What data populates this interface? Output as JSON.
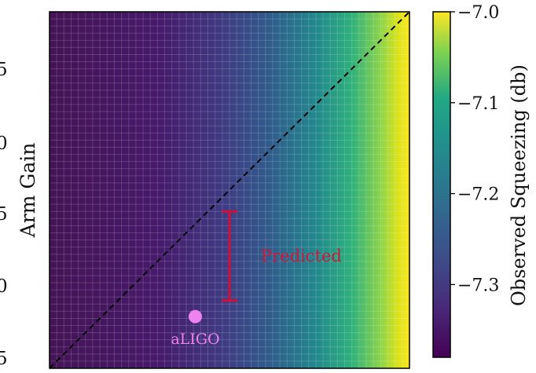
{
  "chart_data": {
    "type": "heatmap",
    "title": "",
    "ylabel": "Arm Gain",
    "xlabel": "",
    "visible_y_tick_labels": [
      "5",
      "0",
      "5",
      "0",
      "5"
    ],
    "grid": true,
    "colormap": "viridis",
    "colorbar": {
      "label": "Observed Squeezing (db)",
      "ticks": [
        -7.0,
        -7.1,
        -7.2,
        -7.3
      ],
      "tick_labels": [
        "−7.0",
        "−7.1",
        "−7.2",
        "−7.3"
      ],
      "range": [
        -7.38,
        -7.0
      ]
    },
    "axes_fraction_range": {
      "x": [
        0,
        1
      ],
      "y": [
        0,
        1
      ]
    },
    "reference_line": {
      "style": "dashed",
      "color": "#000000",
      "from": [
        0,
        0
      ],
      "to": [
        1,
        1
      ]
    },
    "error_bar": {
      "label": "Predicted",
      "color": "#d0103a",
      "x": 0.5,
      "y_low": 0.19,
      "y_high": 0.44,
      "label_color": "#c8183c"
    },
    "point": {
      "label": "aLIGO",
      "color": "#ee82ee",
      "x": 0.405,
      "y": 0.145
    }
  }
}
